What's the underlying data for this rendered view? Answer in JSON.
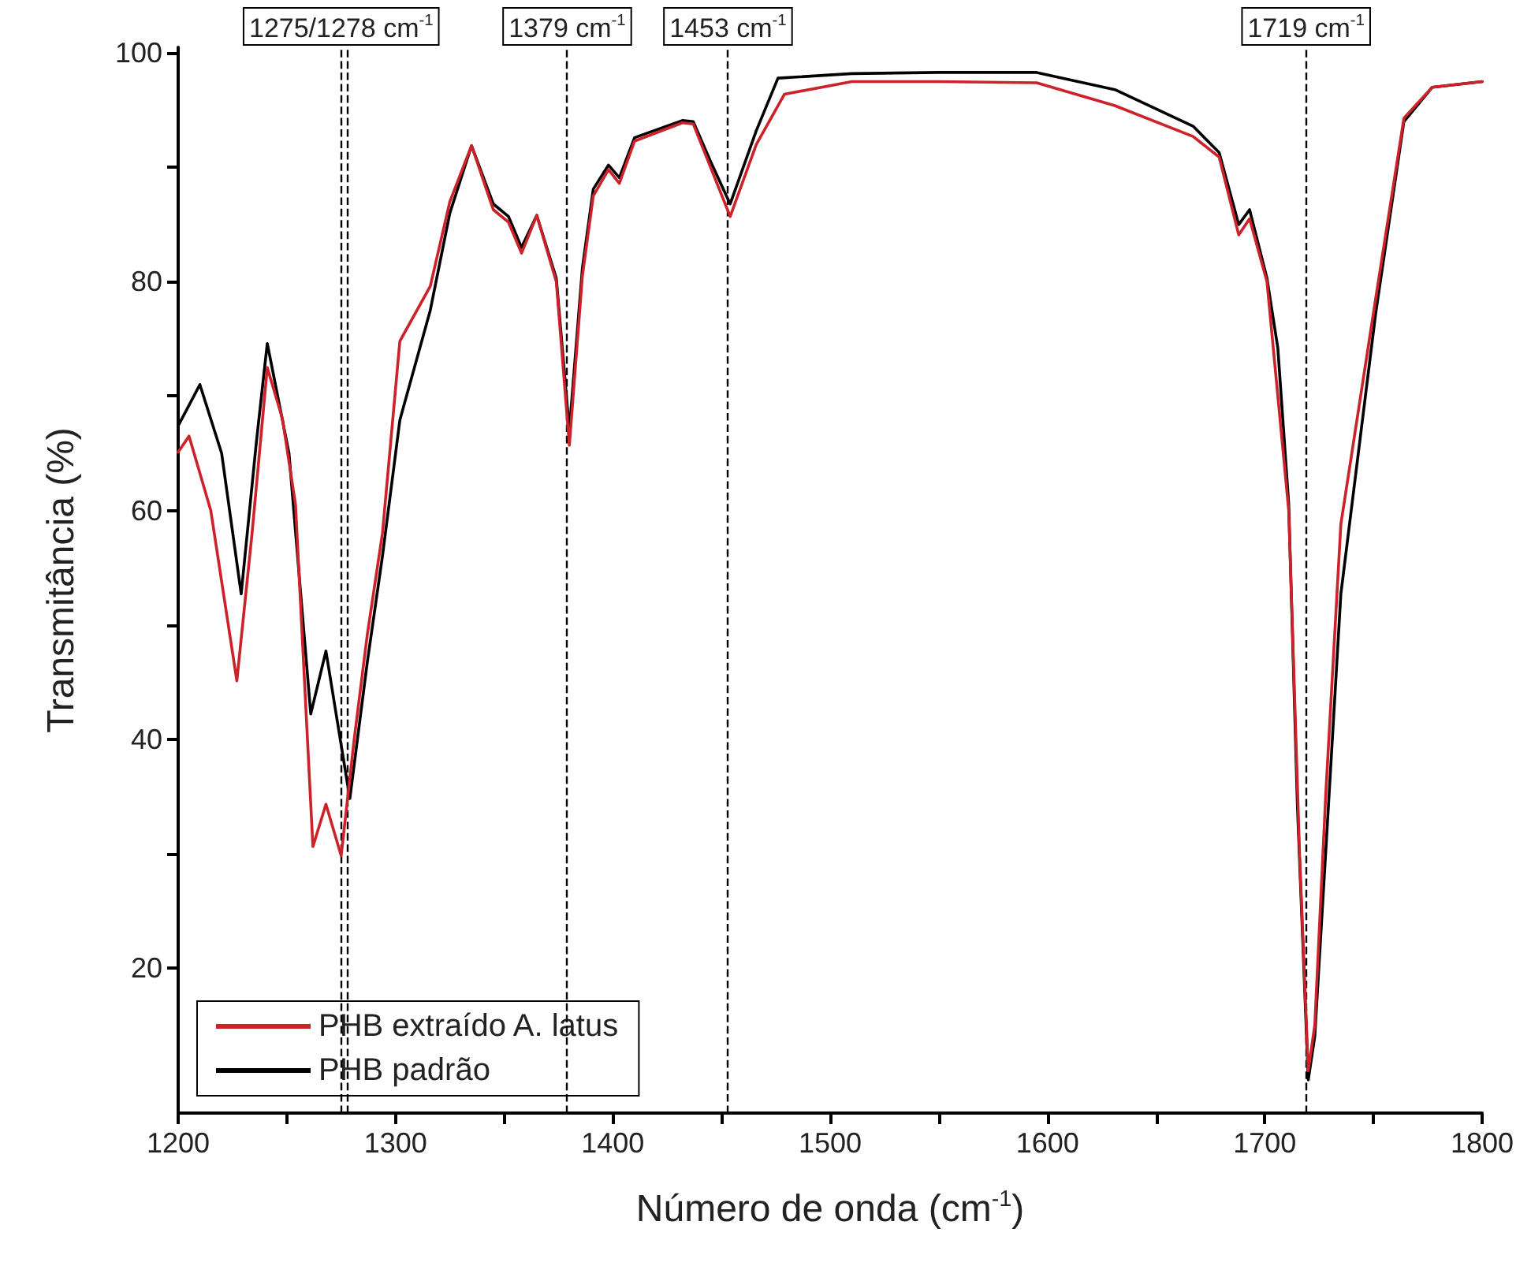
{
  "chart_data": {
    "type": "line",
    "xlabel": "Número de onda (cm$^{-1}$)",
    "ylabel": "Transmitância (%)",
    "xlim": [
      1200,
      1800
    ],
    "ylim": [
      7.3,
      100.5
    ],
    "xticks": [
      1200,
      {
        "value": 1250,
        "label": null
      },
      1300,
      {
        "value": 1350,
        "label": null
      },
      1400,
      {
        "value": 1450,
        "label": null
      },
      1500,
      {
        "value": 1550,
        "label": null
      },
      1600,
      {
        "value": 1650,
        "label": null
      },
      1700,
      {
        "value": 1750,
        "label": null
      },
      1800
    ],
    "yticks": [
      20,
      {
        "value": 30,
        "label": null
      },
      40,
      {
        "value": 50,
        "label": null
      },
      60,
      {
        "value": 70,
        "label": null
      },
      80,
      {
        "value": 90,
        "label": null
      },
      100
    ],
    "grid": false,
    "legend": "bottom left",
    "line_style": "solid",
    "marker": "none",
    "series": [
      {
        "name": "PHB extraído A. latus",
        "color": "#cc2229",
        "x": [
          1200,
          1205,
          1215,
          1227,
          1234,
          1241,
          1248,
          1254,
          1262,
          1268,
          1275,
          1281,
          1287,
          1294,
          1302,
          1316,
          1325,
          1335,
          1345,
          1352,
          1358,
          1365,
          1374,
          1380,
          1386,
          1391,
          1398,
          1403,
          1410,
          1432,
          1437,
          1445,
          1454,
          1466,
          1479,
          1510,
          1550,
          1595,
          1631,
          1667,
          1679,
          1688,
          1693,
          1701,
          1711,
          1716,
          1720,
          1723,
          1728,
          1735,
          1751,
          1764,
          1777,
          1800
        ],
        "values": [
          65.1,
          66.5,
          60,
          45.1,
          58,
          72.5,
          68,
          60.5,
          30.6,
          34.3,
          29.8,
          40,
          49.1,
          58,
          74.8,
          79.6,
          87,
          91.9,
          86.3,
          85.2,
          82.5,
          85.8,
          80,
          65.7,
          80.5,
          87.5,
          89.8,
          88.6,
          92.3,
          93.9,
          93.8,
          90,
          85.7,
          92,
          96.4,
          97.5,
          97.5,
          97.4,
          95.4,
          92.7,
          90.9,
          84.1,
          85.5,
          80,
          60,
          30,
          11,
          15,
          35,
          58.8,
          78.5,
          94.3,
          97,
          97.5
        ]
      },
      {
        "name": "PHB padrão",
        "color": "#000000",
        "x": [
          1200,
          1210,
          1220,
          1229,
          1236,
          1241,
          1251,
          1261,
          1268,
          1279,
          1287,
          1294,
          1302,
          1316,
          1325,
          1335,
          1345,
          1352,
          1358,
          1365,
          1374,
          1380,
          1386,
          1391,
          1398,
          1403,
          1410,
          1432,
          1437,
          1445,
          1454,
          1466,
          1476,
          1510,
          1550,
          1595,
          1631,
          1667,
          1679,
          1688,
          1693,
          1701,
          1706,
          1711,
          1715,
          1720,
          1723,
          1728,
          1735,
          1751,
          1764,
          1777,
          1800
        ],
        "values": [
          67.4,
          71,
          65,
          52.7,
          66,
          74.6,
          65,
          42.2,
          47.7,
          34.8,
          46.7,
          56,
          67.9,
          77.5,
          86,
          91.9,
          86.8,
          85.7,
          83,
          85.8,
          80.3,
          67,
          81.2,
          88.1,
          90.2,
          89.1,
          92.6,
          94.1,
          94,
          90.5,
          86.8,
          93.2,
          97.8,
          98.2,
          98.3,
          98.3,
          96.8,
          93.6,
          91.3,
          85,
          86.3,
          80.3,
          74.2,
          60.6,
          34.2,
          10.2,
          14,
          30,
          52.7,
          77.2,
          94,
          97,
          97.5
        ]
      }
    ],
    "ref_lines": [
      {
        "axis": "x",
        "value": 1275,
        "label": "1275/1278 cm$^{-1}$",
        "color": "#000000",
        "line_style": "dashed"
      },
      {
        "axis": "x",
        "value": 1278,
        "label": null,
        "color": "#000000",
        "line_style": "dashed"
      },
      {
        "axis": "x",
        "value": 1379,
        "label": "1379 cm$^{-1}$",
        "color": "#000000",
        "line_style": "dashed"
      },
      {
        "axis": "x",
        "value": 1453,
        "label": "1453 cm$^{-1}$",
        "color": "#000000",
        "line_style": "dashed"
      },
      {
        "axis": "x",
        "value": 1719,
        "label": "1719 cm$^{-1}$",
        "color": "#000000",
        "line_style": "dashed"
      }
    ]
  }
}
